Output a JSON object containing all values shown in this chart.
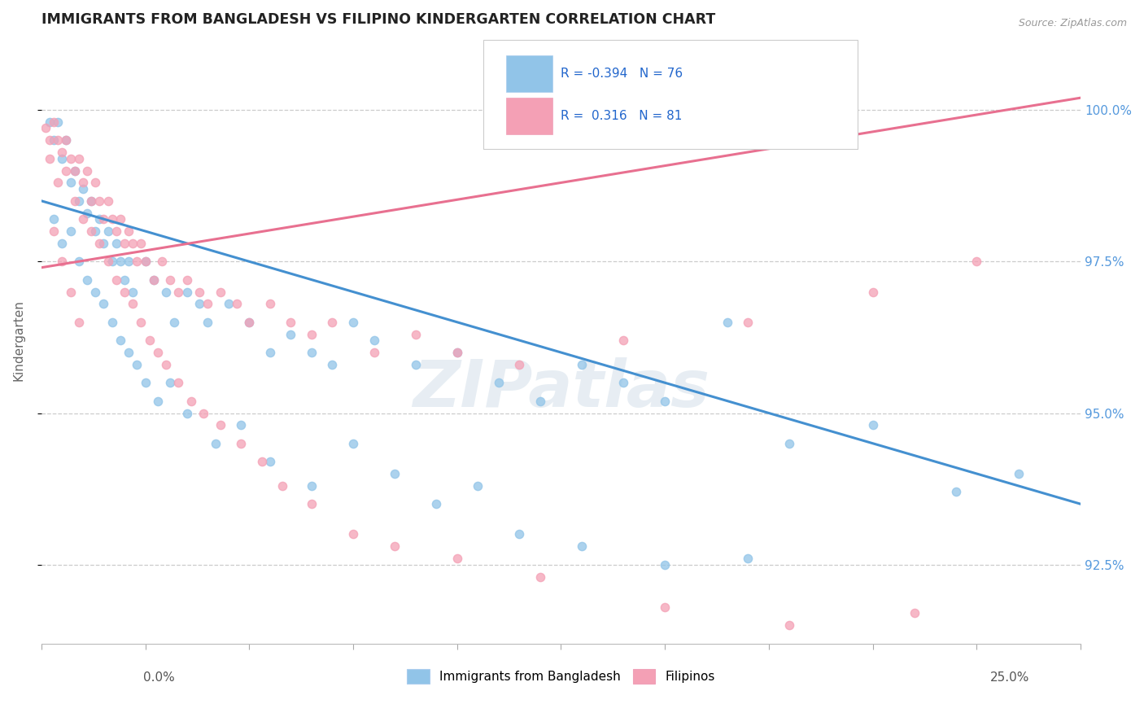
{
  "title": "IMMIGRANTS FROM BANGLADESH VS FILIPINO KINDERGARTEN CORRELATION CHART",
  "source": "Source: ZipAtlas.com",
  "ylabel": "Kindergarten",
  "ylabel_right_labels": [
    "92.5%",
    "95.0%",
    "97.5%",
    "100.0%"
  ],
  "ylabel_right_ticks": [
    92.5,
    95.0,
    97.5,
    100.0
  ],
  "xmin": 0.0,
  "xmax": 25.0,
  "ymin": 91.2,
  "ymax": 101.2,
  "legend_blue_label": "Immigrants from Bangladesh",
  "legend_pink_label": "Filipinos",
  "blue_color": "#91c4e8",
  "pink_color": "#f4a0b5",
  "blue_line_color": "#4490d0",
  "pink_line_color": "#e87090",
  "blue_trend_x": [
    0.0,
    25.0
  ],
  "blue_trend_y": [
    98.5,
    93.5
  ],
  "pink_trend_x": [
    0.0,
    25.0
  ],
  "pink_trend_y": [
    97.4,
    100.2
  ],
  "blue_scatter_x": [
    0.2,
    0.3,
    0.4,
    0.5,
    0.6,
    0.7,
    0.8,
    0.9,
    1.0,
    1.1,
    1.2,
    1.3,
    1.4,
    1.5,
    1.6,
    1.7,
    1.8,
    1.9,
    2.0,
    2.1,
    2.2,
    2.5,
    2.7,
    3.0,
    3.2,
    3.5,
    3.8,
    4.0,
    4.5,
    5.0,
    5.5,
    6.0,
    6.5,
    7.0,
    7.5,
    8.0,
    9.0,
    10.0,
    11.0,
    12.0,
    13.0,
    14.0,
    15.0,
    16.5,
    18.0,
    20.0,
    22.0,
    23.5,
    0.3,
    0.5,
    0.7,
    0.9,
    1.1,
    1.3,
    1.5,
    1.7,
    1.9,
    2.1,
    2.3,
    2.5,
    2.8,
    3.1,
    3.5,
    4.2,
    4.8,
    5.5,
    6.5,
    7.5,
    8.5,
    9.5,
    10.5,
    11.5,
    13.0,
    15.0,
    17.0
  ],
  "blue_scatter_y": [
    99.8,
    99.5,
    99.8,
    99.2,
    99.5,
    98.8,
    99.0,
    98.5,
    98.7,
    98.3,
    98.5,
    98.0,
    98.2,
    97.8,
    98.0,
    97.5,
    97.8,
    97.5,
    97.2,
    97.5,
    97.0,
    97.5,
    97.2,
    97.0,
    96.5,
    97.0,
    96.8,
    96.5,
    96.8,
    96.5,
    96.0,
    96.3,
    96.0,
    95.8,
    96.5,
    96.2,
    95.8,
    96.0,
    95.5,
    95.2,
    95.8,
    95.5,
    95.2,
    96.5,
    94.5,
    94.8,
    93.7,
    94.0,
    98.2,
    97.8,
    98.0,
    97.5,
    97.2,
    97.0,
    96.8,
    96.5,
    96.2,
    96.0,
    95.8,
    95.5,
    95.2,
    95.5,
    95.0,
    94.5,
    94.8,
    94.2,
    93.8,
    94.5,
    94.0,
    93.5,
    93.8,
    93.0,
    92.8,
    92.5,
    92.6
  ],
  "pink_scatter_x": [
    0.1,
    0.2,
    0.3,
    0.4,
    0.5,
    0.6,
    0.7,
    0.8,
    0.9,
    1.0,
    1.1,
    1.2,
    1.3,
    1.4,
    1.5,
    1.6,
    1.7,
    1.8,
    1.9,
    2.0,
    2.1,
    2.2,
    2.3,
    2.4,
    2.5,
    2.7,
    2.9,
    3.1,
    3.3,
    3.5,
    3.8,
    4.0,
    4.3,
    4.7,
    5.0,
    5.5,
    6.0,
    6.5,
    7.0,
    8.0,
    9.0,
    10.0,
    11.5,
    14.0,
    17.0,
    20.0,
    22.5,
    0.2,
    0.4,
    0.6,
    0.8,
    1.0,
    1.2,
    1.4,
    1.6,
    1.8,
    2.0,
    2.2,
    2.4,
    2.6,
    2.8,
    3.0,
    3.3,
    3.6,
    3.9,
    4.3,
    4.8,
    5.3,
    5.8,
    6.5,
    7.5,
    8.5,
    10.0,
    12.0,
    15.0,
    18.0,
    21.0,
    0.3,
    0.5,
    0.7,
    0.9
  ],
  "pink_scatter_y": [
    99.7,
    99.5,
    99.8,
    99.5,
    99.3,
    99.5,
    99.2,
    99.0,
    99.2,
    98.8,
    99.0,
    98.5,
    98.8,
    98.5,
    98.2,
    98.5,
    98.2,
    98.0,
    98.2,
    97.8,
    98.0,
    97.8,
    97.5,
    97.8,
    97.5,
    97.2,
    97.5,
    97.2,
    97.0,
    97.2,
    97.0,
    96.8,
    97.0,
    96.8,
    96.5,
    96.8,
    96.5,
    96.3,
    96.5,
    96.0,
    96.3,
    96.0,
    95.8,
    96.2,
    96.5,
    97.0,
    97.5,
    99.2,
    98.8,
    99.0,
    98.5,
    98.2,
    98.0,
    97.8,
    97.5,
    97.2,
    97.0,
    96.8,
    96.5,
    96.2,
    96.0,
    95.8,
    95.5,
    95.2,
    95.0,
    94.8,
    94.5,
    94.2,
    93.8,
    93.5,
    93.0,
    92.8,
    92.6,
    92.3,
    91.8,
    91.5,
    91.7,
    98.0,
    97.5,
    97.0,
    96.5
  ]
}
